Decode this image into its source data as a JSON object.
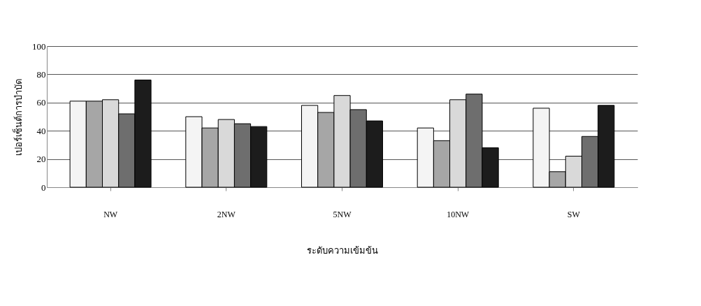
{
  "chart_data": {
    "type": "bar",
    "xlabel": "ระดับความเข้มข้น",
    "ylabel": "เปอร์เซ็นต์การบำบัด",
    "categories": [
      "NW",
      "2NW",
      "5NW",
      "10NW",
      "SW"
    ],
    "series": [
      {
        "color": "#f4f4f4",
        "values": [
          61,
          50,
          58,
          42,
          56
        ]
      },
      {
        "color": "#a6a6a6",
        "values": [
          61,
          42,
          53,
          33,
          11
        ]
      },
      {
        "color": "#d9d9d9",
        "values": [
          62,
          48,
          65,
          62,
          22
        ]
      },
      {
        "color": "#6e6e6e",
        "values": [
          52,
          45,
          55,
          66,
          36
        ]
      },
      {
        "color": "#1c1c1c",
        "values": [
          76,
          43,
          47,
          28,
          58
        ]
      }
    ],
    "ylim": [
      0,
      100
    ],
    "yticks": [
      0,
      20,
      40,
      60,
      80,
      100
    ],
    "grid": "y",
    "legend": false
  }
}
